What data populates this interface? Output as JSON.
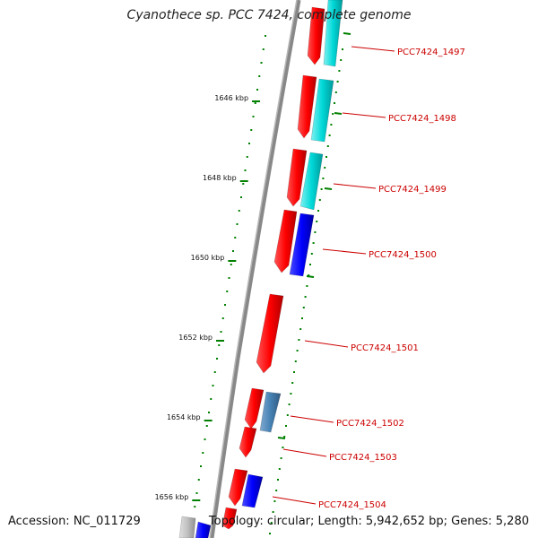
{
  "title": "Cyanothece sp. PCC 7424, complete genome",
  "accession": "Accession: NC_011729",
  "summary": "Topology: circular; Length: 5,942,652 bp; Genes: 5,280",
  "ticks": [
    "1646 kbp",
    "1648 kbp",
    "1650 kbp",
    "1652 kbp",
    "1654 kbp",
    "1656 kbp"
  ],
  "genes": [
    "PCC7424_1497",
    "PCC7424_1498",
    "PCC7424_1499",
    "PCC7424_1500",
    "PCC7424_1501",
    "PCC7424_1502",
    "PCC7424_1503",
    "PCC7424_1504"
  ],
  "colors": {
    "forward_cds": "#ff0000",
    "reverse_blue": "#0000ff",
    "reverse_cyan": "#00d0d0",
    "reverse_steel": "#4682b4",
    "grey_feature": "#c0c0c0",
    "backbone": "#888888",
    "ruler": "#008000",
    "label": "#cc0000"
  }
}
